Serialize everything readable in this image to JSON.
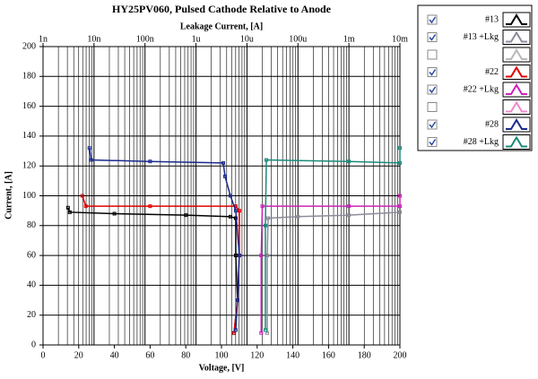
{
  "chart_data": {
    "type": "line",
    "title": "HY25PV060, Pulsed Cathode Relative to Anode",
    "x_label": "Voltage, [V]",
    "x2_label": "Leakage Current, [A]",
    "y_label": "Current, [A]",
    "xlim": [
      0,
      200
    ],
    "xticks": [
      0,
      20,
      40,
      60,
      80,
      100,
      120,
      140,
      160,
      180,
      200
    ],
    "ylim": [
      0,
      200
    ],
    "yticks": [
      0,
      20,
      40,
      60,
      80,
      100,
      120,
      140,
      160,
      180,
      200
    ],
    "x2scale": "log",
    "x2lim": [
      1e-09,
      0.01
    ],
    "x2ticks": [
      {
        "value": 1e-09,
        "label": "1n"
      },
      {
        "value": 1e-08,
        "label": "10n"
      },
      {
        "value": 1e-07,
        "label": "100n"
      },
      {
        "value": 1e-06,
        "label": "1u"
      },
      {
        "value": 1e-05,
        "label": "10u"
      },
      {
        "value": 0.0001,
        "label": "100u"
      },
      {
        "value": 0.001,
        "label": "1m"
      },
      {
        "value": 0.01,
        "label": "10m"
      }
    ],
    "x2minorticks": [
      2e-09,
      3e-09,
      4e-09,
      5e-09,
      6e-09,
      7e-09,
      8e-09,
      9e-09,
      2e-08,
      3e-08,
      4e-08,
      5e-08,
      6e-08,
      7e-08,
      8e-08,
      9e-08,
      2e-07,
      3e-07,
      4e-07,
      5e-07,
      6e-07,
      7e-07,
      8e-07,
      9e-07,
      2e-06,
      3e-06,
      4e-06,
      5e-06,
      6e-06,
      7e-06,
      8e-06,
      9e-06,
      2e-05,
      3e-05,
      4e-05,
      5e-05,
      6e-05,
      7e-05,
      8e-05,
      9e-05,
      0.0002,
      0.0003,
      0.0004,
      0.0005,
      0.0006,
      0.0007,
      0.0008,
      0.0009,
      0.002,
      0.003,
      0.004,
      0.005,
      0.006,
      0.007,
      0.008,
      0.009
    ],
    "grid": true,
    "series": [
      {
        "name": "#13",
        "color": "#000000",
        "axis": "x",
        "checked": true,
        "x": [
          14,
          15,
          40,
          80,
          105,
          108,
          108,
          109,
          107
        ],
        "values": [
          92,
          89,
          88,
          87,
          86,
          85,
          60,
          30,
          8
        ]
      },
      {
        "name": "#13 +Lkg",
        "color": "#8c8c9c",
        "axis": "x2",
        "checked": true,
        "x": [
          2.5e-05,
          2.5e-05,
          2.6e-05,
          0.0001,
          0.001,
          0.01
        ],
        "values": [
          8,
          60,
          85,
          86,
          87,
          89
        ]
      },
      {
        "name": null,
        "color": "#b8b8b8",
        "axis": "x2",
        "checked": false,
        "x": [],
        "values": []
      },
      {
        "name": "#22",
        "color": "#e00000",
        "axis": "x",
        "checked": true,
        "x": [
          22,
          24,
          60,
          108,
          110,
          110,
          109,
          107
        ],
        "values": [
          100,
          93,
          93,
          93,
          90,
          60,
          30,
          8
        ]
      },
      {
        "name": "#22 +Lkg",
        "color": "#cc22bb",
        "axis": "x2",
        "checked": true,
        "x": [
          1.9e-05,
          1.9e-05,
          2e-05,
          0.001,
          0.01,
          0.01
        ],
        "values": [
          8,
          60,
          93,
          93,
          93,
          100
        ]
      },
      {
        "name": null,
        "color": "#ee88cc",
        "axis": "x2",
        "checked": false,
        "x": [],
        "values": []
      },
      {
        "name": "#28",
        "color": "#1a2a8c",
        "axis": "x",
        "checked": true,
        "x": [
          26,
          27,
          60,
          101,
          102,
          105,
          108,
          110,
          109,
          108
        ],
        "values": [
          132,
          124,
          123,
          122,
          113,
          100,
          90,
          60,
          30,
          10
        ]
      },
      {
        "name": "#28 +Lkg",
        "color": "#1a8a7a",
        "axis": "x2",
        "checked": true,
        "x": [
          2.3e-05,
          2.3e-05,
          2.4e-05,
          0.001,
          0.01,
          0.01
        ],
        "values": [
          10,
          80,
          124,
          123,
          122,
          132
        ]
      }
    ]
  }
}
